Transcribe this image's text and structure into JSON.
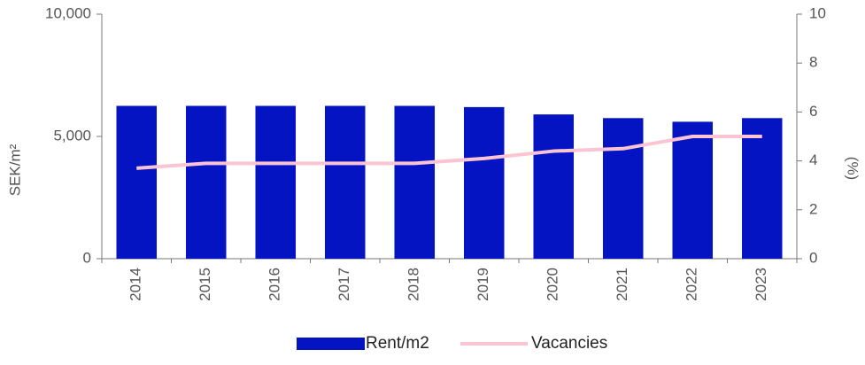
{
  "chart_data": {
    "type": "bar_line",
    "y_label": "SEK/m²",
    "y2_label": "(%)",
    "categories": [
      "2014",
      "2015",
      "2016",
      "2017",
      "2018",
      "2019",
      "2020",
      "2021",
      "2022",
      "2023"
    ],
    "series": [
      {
        "name": "Rent/m2",
        "type": "bar",
        "color": "#0514c2",
        "values": [
          6250,
          6250,
          6250,
          6250,
          6250,
          6200,
          5900,
          5750,
          5600,
          5750
        ]
      },
      {
        "name": "Vacancies",
        "type": "line",
        "axis": "y2",
        "color": "#fbc4d2",
        "values": [
          3.7,
          3.9,
          3.9,
          3.9,
          3.9,
          4.1,
          4.4,
          4.5,
          5.0,
          5.0
        ]
      }
    ],
    "ylim": [
      0,
      10000
    ],
    "yticks": [
      0,
      {
        "value": 5000,
        "label": "5,000"
      },
      {
        "value": 10000,
        "label": "10,000"
      }
    ],
    "y2lim": [
      0,
      10
    ],
    "y2ticks": [
      0,
      2,
      4,
      6,
      8,
      10
    ],
    "legend": "bottom"
  }
}
